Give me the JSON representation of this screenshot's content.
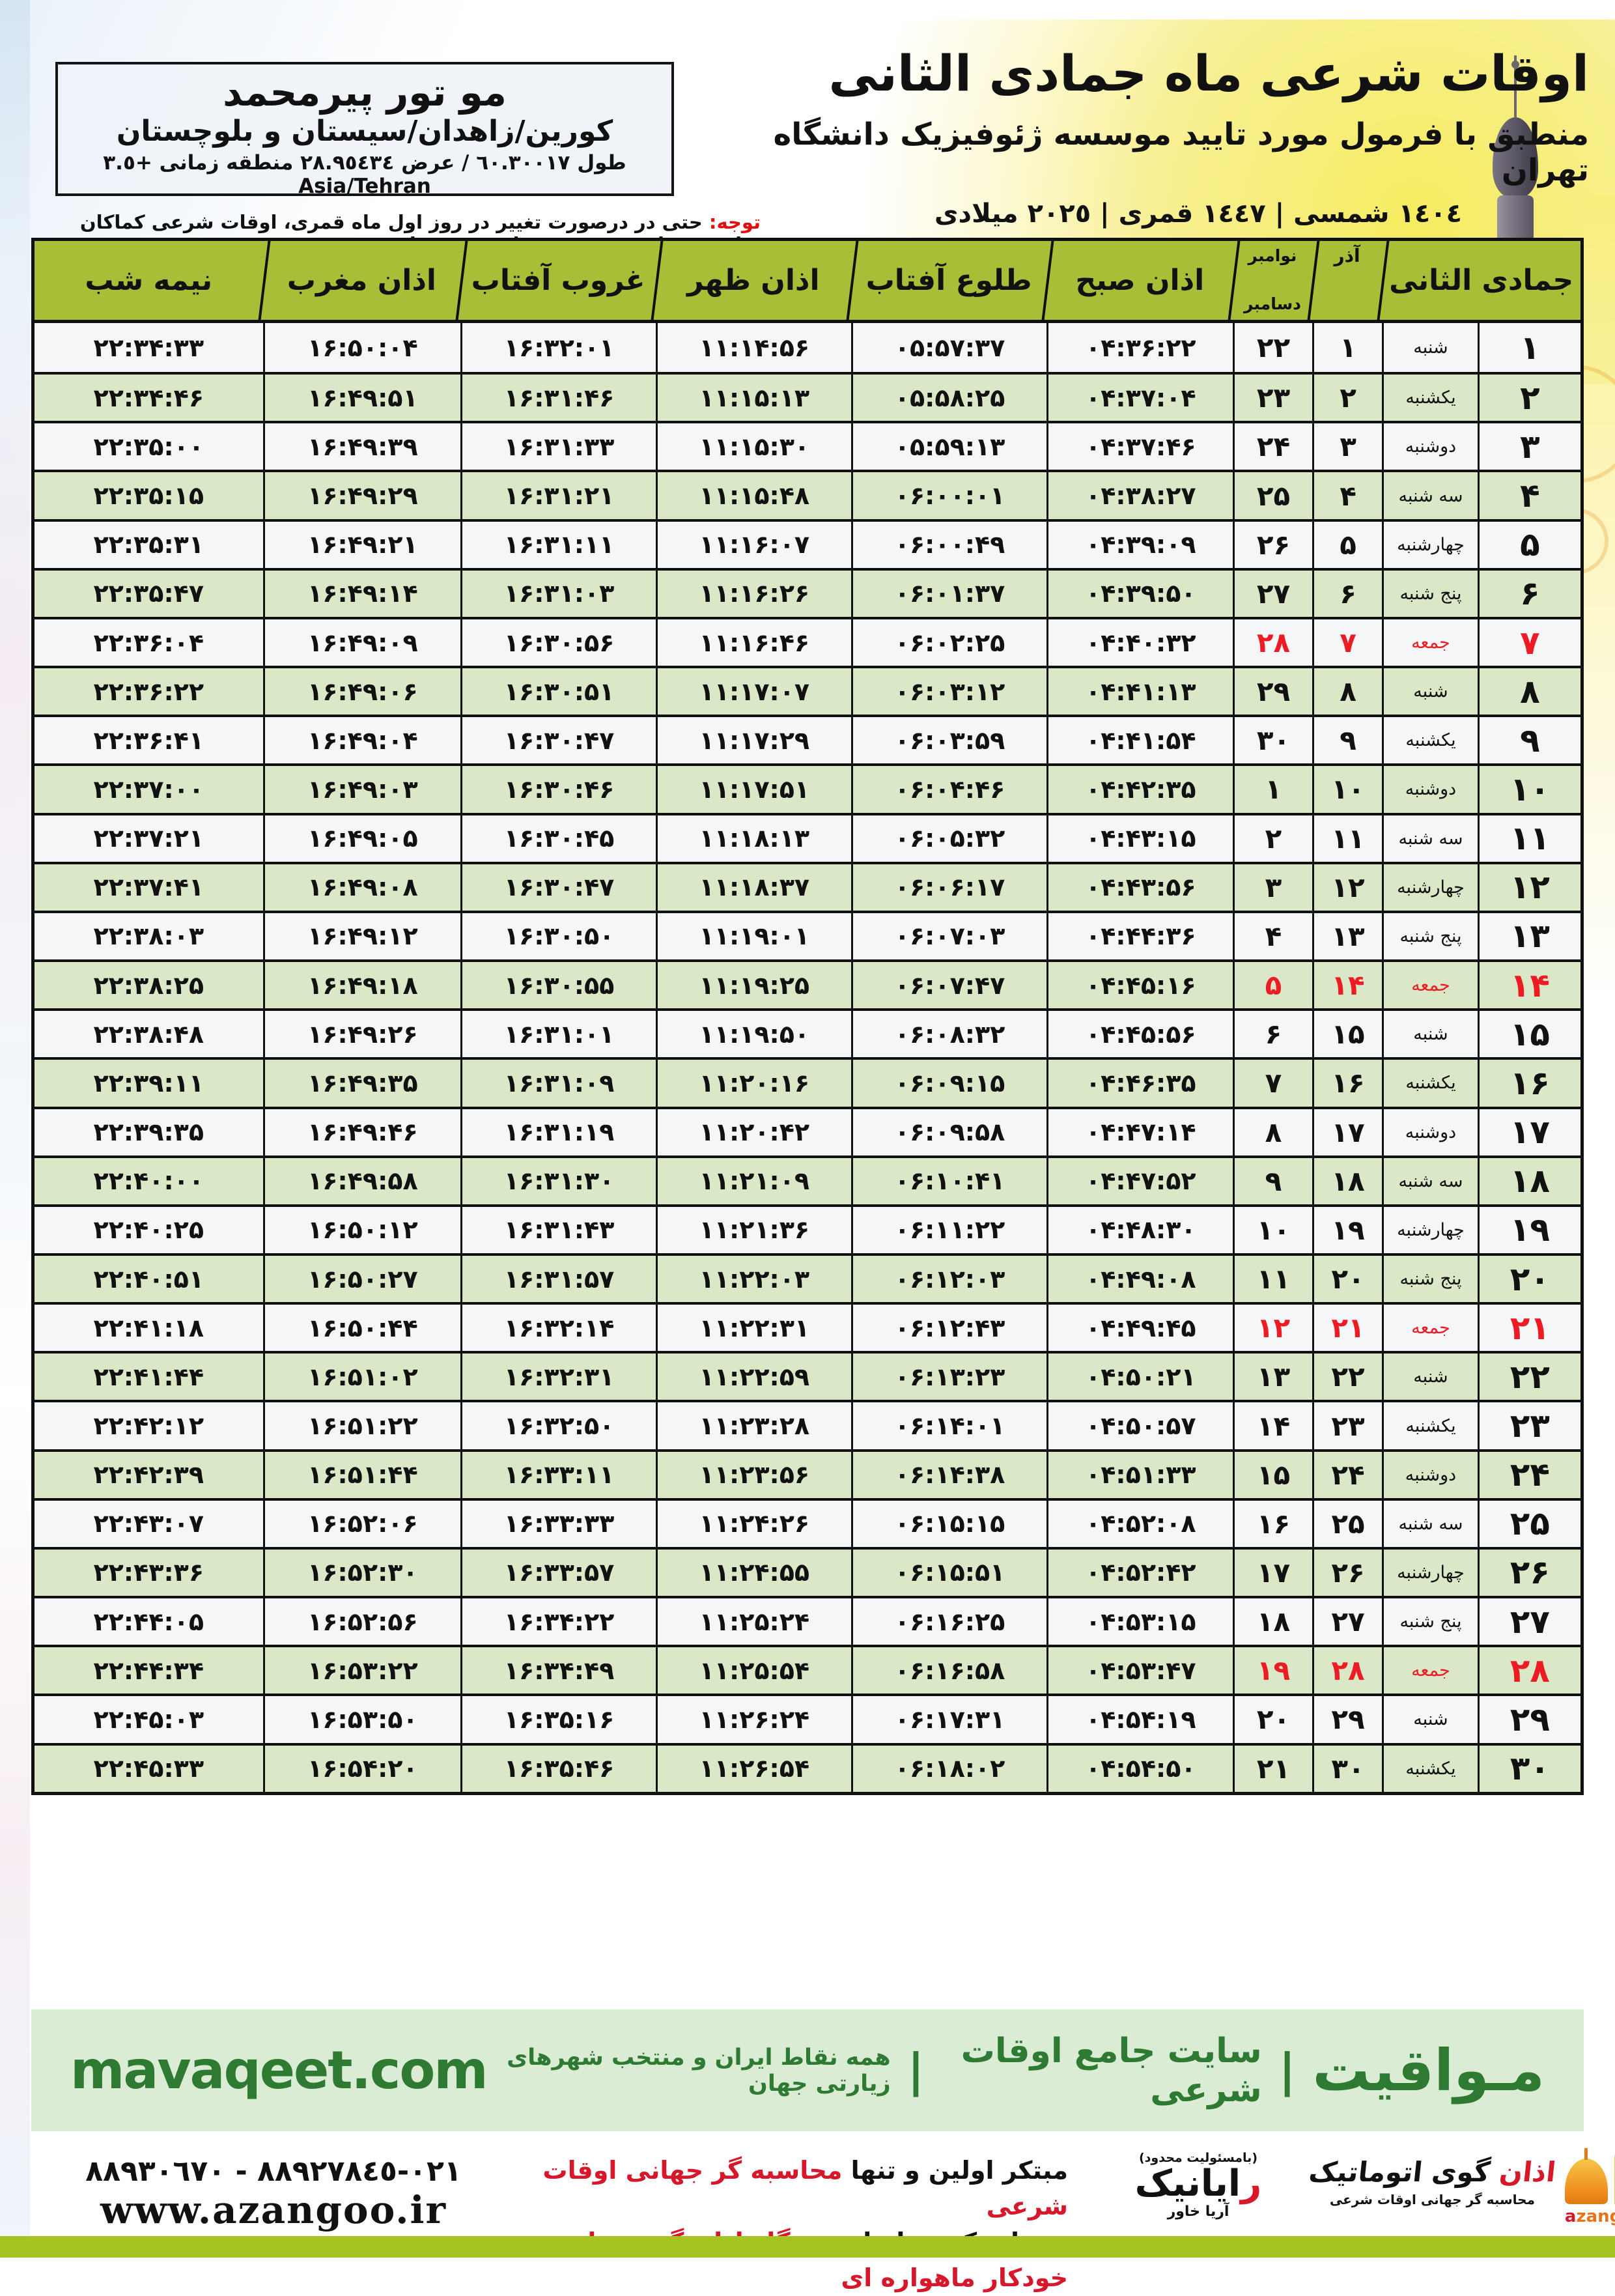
{
  "header": {
    "title": "اوقات شرعی ماه جمادی الثانی",
    "subtitle": "منطبق با فرمول مورد تایید موسسه ژئوفیزیک دانشگاه تهران",
    "calendars": "١٤٠٤ شمسی | ١٤٤٧ قمری | ٢٠٢٥ میلادی",
    "location_name": "مو تور  پیرمحمد",
    "location_region": "کورین/زاهدان/سیستان و بلوچستان",
    "location_coords": "طول ٦٠.٣٠٠١٧ / عرض ٢٨.٩٥٤٣٤ منطقه زمانی +٣.٥ Asia/Tehran",
    "notice_label": "توجه:",
    "notice_text": " حتی در درصورت تغییر در روز اول ماه قمری، اوقات شرعی کماکان برای روزهای شمسی و میلادی معتبر است."
  },
  "table": {
    "columns": {
      "midnight": "نیمه شب",
      "maghrib": "اذان مغرب",
      "sunset": "غروب آفتاب",
      "dhuhr": "اذان ظهر",
      "sunrise": "طلوع آفتاب",
      "fajr": "اذان صبح",
      "west_month_top": "نوامبر",
      "west_month_bottom": "دسامبر",
      "azar": "آذر",
      "month": "جمادی الثانی"
    },
    "rows": [
      {
        "day": "1",
        "weekday": "شنبه",
        "azar": "1",
        "west": "22",
        "fajr": "04:36:22",
        "sunrise": "05:57:37",
        "dhuhr": "11:14:56",
        "sunset": "16:32:01",
        "maghrib": "16:50:04",
        "midnight": "22:34:33",
        "friday": false
      },
      {
        "day": "2",
        "weekday": "یکشنبه",
        "azar": "2",
        "west": "23",
        "fajr": "04:37:04",
        "sunrise": "05:58:25",
        "dhuhr": "11:15:13",
        "sunset": "16:31:46",
        "maghrib": "16:49:51",
        "midnight": "22:34:46",
        "friday": false
      },
      {
        "day": "3",
        "weekday": "دوشنبه",
        "azar": "3",
        "west": "24",
        "fajr": "04:37:46",
        "sunrise": "05:59:13",
        "dhuhr": "11:15:30",
        "sunset": "16:31:33",
        "maghrib": "16:49:39",
        "midnight": "22:35:00",
        "friday": false
      },
      {
        "day": "4",
        "weekday": "سه شنبه",
        "azar": "4",
        "west": "25",
        "fajr": "04:38:27",
        "sunrise": "06:00:01",
        "dhuhr": "11:15:48",
        "sunset": "16:31:21",
        "maghrib": "16:49:29",
        "midnight": "22:35:15",
        "friday": false
      },
      {
        "day": "5",
        "weekday": "چهارشنبه",
        "azar": "5",
        "west": "26",
        "fajr": "04:39:09",
        "sunrise": "06:00:49",
        "dhuhr": "11:16:07",
        "sunset": "16:31:11",
        "maghrib": "16:49:21",
        "midnight": "22:35:31",
        "friday": false
      },
      {
        "day": "6",
        "weekday": "پنج شنبه",
        "azar": "6",
        "west": "27",
        "fajr": "04:39:50",
        "sunrise": "06:01:37",
        "dhuhr": "11:16:26",
        "sunset": "16:31:03",
        "maghrib": "16:49:14",
        "midnight": "22:35:47",
        "friday": false
      },
      {
        "day": "7",
        "weekday": "جمعه",
        "azar": "7",
        "west": "28",
        "fajr": "04:40:32",
        "sunrise": "06:02:25",
        "dhuhr": "11:16:46",
        "sunset": "16:30:56",
        "maghrib": "16:49:09",
        "midnight": "22:36:04",
        "friday": true
      },
      {
        "day": "8",
        "weekday": "شنبه",
        "azar": "8",
        "west": "29",
        "fajr": "04:41:13",
        "sunrise": "06:03:12",
        "dhuhr": "11:17:07",
        "sunset": "16:30:51",
        "maghrib": "16:49:06",
        "midnight": "22:36:22",
        "friday": false
      },
      {
        "day": "9",
        "weekday": "یکشنبه",
        "azar": "9",
        "west": "30",
        "fajr": "04:41:54",
        "sunrise": "06:03:59",
        "dhuhr": "11:17:29",
        "sunset": "16:30:47",
        "maghrib": "16:49:04",
        "midnight": "22:36:41",
        "friday": false
      },
      {
        "day": "10",
        "weekday": "دوشنبه",
        "azar": "10",
        "west": "1",
        "fajr": "04:42:35",
        "sunrise": "06:04:46",
        "dhuhr": "11:17:51",
        "sunset": "16:30:46",
        "maghrib": "16:49:03",
        "midnight": "22:37:00",
        "friday": false
      },
      {
        "day": "11",
        "weekday": "سه شنبه",
        "azar": "11",
        "west": "2",
        "fajr": "04:43:15",
        "sunrise": "06:05:32",
        "dhuhr": "11:18:13",
        "sunset": "16:30:45",
        "maghrib": "16:49:05",
        "midnight": "22:37:21",
        "friday": false
      },
      {
        "day": "12",
        "weekday": "چهارشنبه",
        "azar": "12",
        "west": "3",
        "fajr": "04:43:56",
        "sunrise": "06:06:17",
        "dhuhr": "11:18:37",
        "sunset": "16:30:47",
        "maghrib": "16:49:08",
        "midnight": "22:37:41",
        "friday": false
      },
      {
        "day": "13",
        "weekday": "پنج شنبه",
        "azar": "13",
        "west": "4",
        "fajr": "04:44:36",
        "sunrise": "06:07:03",
        "dhuhr": "11:19:01",
        "sunset": "16:30:50",
        "maghrib": "16:49:12",
        "midnight": "22:38:03",
        "friday": false
      },
      {
        "day": "14",
        "weekday": "جمعه",
        "azar": "14",
        "west": "5",
        "fajr": "04:45:16",
        "sunrise": "06:07:47",
        "dhuhr": "11:19:25",
        "sunset": "16:30:55",
        "maghrib": "16:49:18",
        "midnight": "22:38:25",
        "friday": true
      },
      {
        "day": "15",
        "weekday": "شنبه",
        "azar": "15",
        "west": "6",
        "fajr": "04:45:56",
        "sunrise": "06:08:32",
        "dhuhr": "11:19:50",
        "sunset": "16:31:01",
        "maghrib": "16:49:26",
        "midnight": "22:38:48",
        "friday": false
      },
      {
        "day": "16",
        "weekday": "یکشنبه",
        "azar": "16",
        "west": "7",
        "fajr": "04:46:35",
        "sunrise": "06:09:15",
        "dhuhr": "11:20:16",
        "sunset": "16:31:09",
        "maghrib": "16:49:35",
        "midnight": "22:39:11",
        "friday": false
      },
      {
        "day": "17",
        "weekday": "دوشنبه",
        "azar": "17",
        "west": "8",
        "fajr": "04:47:14",
        "sunrise": "06:09:58",
        "dhuhr": "11:20:42",
        "sunset": "16:31:19",
        "maghrib": "16:49:46",
        "midnight": "22:39:35",
        "friday": false
      },
      {
        "day": "18",
        "weekday": "سه شنبه",
        "azar": "18",
        "west": "9",
        "fajr": "04:47:52",
        "sunrise": "06:10:41",
        "dhuhr": "11:21:09",
        "sunset": "16:31:30",
        "maghrib": "16:49:58",
        "midnight": "22:40:00",
        "friday": false
      },
      {
        "day": "19",
        "weekday": "چهارشنبه",
        "azar": "19",
        "west": "10",
        "fajr": "04:48:30",
        "sunrise": "06:11:22",
        "dhuhr": "11:21:36",
        "sunset": "16:31:43",
        "maghrib": "16:50:12",
        "midnight": "22:40:25",
        "friday": false
      },
      {
        "day": "20",
        "weekday": "پنج شنبه",
        "azar": "20",
        "west": "11",
        "fajr": "04:49:08",
        "sunrise": "06:12:03",
        "dhuhr": "11:22:03",
        "sunset": "16:31:57",
        "maghrib": "16:50:27",
        "midnight": "22:40:51",
        "friday": false
      },
      {
        "day": "21",
        "weekday": "جمعه",
        "azar": "21",
        "west": "12",
        "fajr": "04:49:45",
        "sunrise": "06:12:43",
        "dhuhr": "11:22:31",
        "sunset": "16:32:14",
        "maghrib": "16:50:44",
        "midnight": "22:41:18",
        "friday": true
      },
      {
        "day": "22",
        "weekday": "شنبه",
        "azar": "22",
        "west": "13",
        "fajr": "04:50:21",
        "sunrise": "06:13:23",
        "dhuhr": "11:22:59",
        "sunset": "16:32:31",
        "maghrib": "16:51:02",
        "midnight": "22:41:44",
        "friday": false
      },
      {
        "day": "23",
        "weekday": "یکشنبه",
        "azar": "23",
        "west": "14",
        "fajr": "04:50:57",
        "sunrise": "06:14:01",
        "dhuhr": "11:23:28",
        "sunset": "16:32:50",
        "maghrib": "16:51:22",
        "midnight": "22:42:12",
        "friday": false
      },
      {
        "day": "24",
        "weekday": "دوشنبه",
        "azar": "24",
        "west": "15",
        "fajr": "04:51:33",
        "sunrise": "06:14:38",
        "dhuhr": "11:23:56",
        "sunset": "16:33:11",
        "maghrib": "16:51:44",
        "midnight": "22:42:39",
        "friday": false
      },
      {
        "day": "25",
        "weekday": "سه شنبه",
        "azar": "25",
        "west": "16",
        "fajr": "04:52:08",
        "sunrise": "06:15:15",
        "dhuhr": "11:24:26",
        "sunset": "16:33:33",
        "maghrib": "16:52:06",
        "midnight": "22:43:07",
        "friday": false
      },
      {
        "day": "26",
        "weekday": "چهارشنبه",
        "azar": "26",
        "west": "17",
        "fajr": "04:52:42",
        "sunrise": "06:15:51",
        "dhuhr": "11:24:55",
        "sunset": "16:33:57",
        "maghrib": "16:52:30",
        "midnight": "22:43:36",
        "friday": false
      },
      {
        "day": "27",
        "weekday": "پنج شنبه",
        "azar": "27",
        "west": "18",
        "fajr": "04:53:15",
        "sunrise": "06:16:25",
        "dhuhr": "11:25:24",
        "sunset": "16:34:22",
        "maghrib": "16:52:56",
        "midnight": "22:44:05",
        "friday": false
      },
      {
        "day": "28",
        "weekday": "جمعه",
        "azar": "28",
        "west": "19",
        "fajr": "04:53:47",
        "sunrise": "06:16:58",
        "dhuhr": "11:25:54",
        "sunset": "16:34:49",
        "maghrib": "16:53:22",
        "midnight": "22:44:34",
        "friday": true
      },
      {
        "day": "29",
        "weekday": "شنبه",
        "azar": "29",
        "west": "20",
        "fajr": "04:54:19",
        "sunrise": "06:17:31",
        "dhuhr": "11:26:24",
        "sunset": "16:35:16",
        "maghrib": "16:53:50",
        "midnight": "22:45:03",
        "friday": false
      },
      {
        "day": "30",
        "weekday": "یکشنبه",
        "azar": "30",
        "west": "21",
        "fajr": "04:54:50",
        "sunrise": "06:18:02",
        "dhuhr": "11:26:54",
        "sunset": "16:35:46",
        "maghrib": "16:54:20",
        "midnight": "22:45:33",
        "friday": false
      }
    ]
  },
  "footer": {
    "site_domain": "mavaqeet.com",
    "site_brand": "مـواقیت",
    "site_pipe": "|",
    "site_tagline": "سایت جامع اوقات شرعی",
    "site_scope": "همه نقاط ایران و منتخب شهرهای زیارتی جهان",
    "phones": "٠٢١-٨٨٩٢٧٨٤٥ - ٨٨٩٣٠٦٧٠",
    "website": "www.azangoo.ir",
    "line1_black": "مبتکر اولین و تنها ",
    "line1_red": "محاسبه گر جهانی اوقات شرعی",
    "line2_black": "و تولید کننده انواع ",
    "line2_red": "دستگاه اذان گوی تمام خودکار ماهواره ای",
    "rayanik_note": "(بامسئولیت محدود)",
    "rayanik_name_first": "ر",
    "rayanik_name_rest": "ایانیک",
    "rayanik_sub": "آریا خاور",
    "azangoo_name_first": "اذان",
    "azangoo_name_rest": " گوی اتوماتیک",
    "azangoo_sub": "محاسبه گر جهانی اوقات شرعی",
    "azangoo_latin_first": "a",
    "azangoo_latin_rest": "zangoo"
  },
  "colors": {
    "header_green": "#a6bf36",
    "row_green": "#d9e7c4",
    "row_white": "#f3f5f8",
    "friday_red": "#ec1c24",
    "brand_green": "#2e7a33",
    "bottom_lime": "#a5c421"
  }
}
